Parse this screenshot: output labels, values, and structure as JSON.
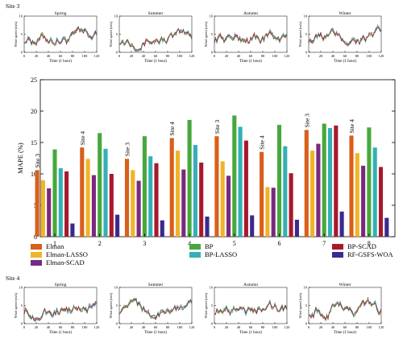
{
  "site3_label": "Site 3",
  "site4_label": "Site 4",
  "season_titles": [
    "Spring",
    "Summer",
    "Autumn",
    "Winter"
  ],
  "small_chart_xlabel": "Time (1 hour)",
  "small_chart_ylabel": "Wind speed (m/s)",
  "small_chart_xticks": [
    "0",
    "20",
    "40",
    "60",
    "80",
    "100",
    "120"
  ],
  "small_chart_yticks": [
    "0",
    "5",
    "10"
  ],
  "small_chart_ylim": [
    0,
    10
  ],
  "small_chart_xlim": [
    0,
    120
  ],
  "colors": {
    "Elman": "#d95f1a",
    "Elman-LASSO": "#f0b428",
    "Elman-SCAD": "#7a2a7e",
    "BP": "#46a83c",
    "BP-LASSO": "#33b0b5",
    "BP-SCAD": "#a8182c",
    "RF-GSFS-WOA": "#3a2a8e"
  },
  "chart_data": {
    "type": "bar",
    "ylabel": "MAPE (%)",
    "ylim": [
      0,
      25
    ],
    "yticks": [
      "0",
      "5",
      "10",
      "15",
      "20",
      "25"
    ],
    "categories": [
      "1",
      "2",
      "3",
      "4",
      "5",
      "6",
      "7",
      "8"
    ],
    "group_annotations": [
      "Site 3",
      "Site 4",
      "Site 3",
      "Site 4",
      "Site 3",
      "Site 4",
      "Site 3",
      "Site 4"
    ],
    "series": [
      {
        "name": "Elman",
        "values": [
          10.6,
          14.2,
          12.4,
          15.7,
          16.0,
          13.5,
          17.0,
          16.1
        ]
      },
      {
        "name": "Elman-LASSO",
        "values": [
          9.0,
          12.4,
          10.6,
          13.7,
          12.0,
          7.9,
          13.7,
          13.3
        ]
      },
      {
        "name": "Elman-SCAD",
        "values": [
          7.7,
          9.8,
          8.9,
          10.7,
          9.7,
          7.8,
          14.8,
          11.3
        ]
      },
      {
        "name": "BP",
        "values": [
          13.9,
          16.5,
          16.0,
          18.6,
          19.3,
          17.8,
          18.0,
          17.4
        ]
      },
      {
        "name": "BP-LASSO",
        "values": [
          10.9,
          14.0,
          12.8,
          14.6,
          17.5,
          14.4,
          17.3,
          14.2
        ]
      },
      {
        "name": "BP-SCAD",
        "values": [
          10.4,
          10.0,
          11.7,
          11.8,
          15.3,
          10.1,
          17.7,
          11.1
        ]
      },
      {
        "name": "RF-GSFS-WOA",
        "values": [
          2.1,
          3.5,
          2.6,
          3.2,
          3.4,
          2.7,
          4.0,
          3.0
        ]
      }
    ],
    "legend_placement": "bottom",
    "grid": false
  }
}
